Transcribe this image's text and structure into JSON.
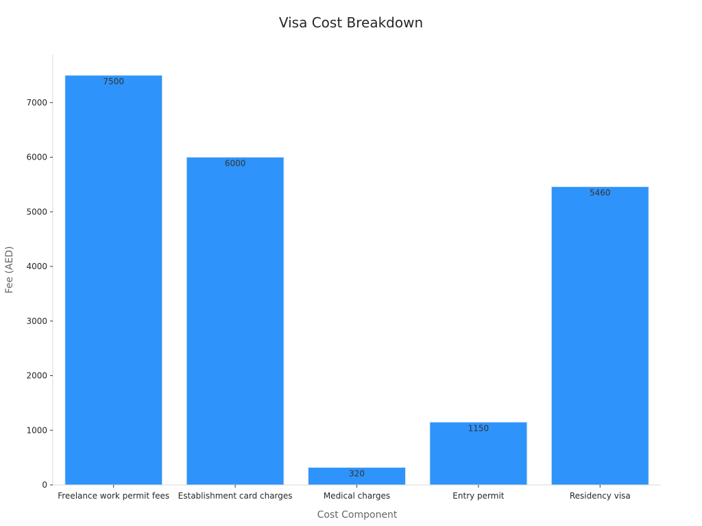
{
  "chart_data": {
    "type": "bar",
    "title": "Visa Cost Breakdown",
    "xlabel": "Cost Component",
    "ylabel": "Fee (AED)",
    "categories": [
      "Freelance work permit fees",
      "Establishment card charges",
      "Medical charges",
      "Entry permit",
      "Residency visa"
    ],
    "values": [
      7500,
      6000,
      320,
      1150,
      5460
    ],
    "data_labels": [
      "7500",
      "6000",
      "320",
      "1150",
      "5460"
    ],
    "ylim": [
      0,
      7875
    ],
    "yticks": [
      0,
      1000,
      2000,
      3000,
      4000,
      5000,
      6000,
      7000
    ],
    "ytick_labels": [
      "0",
      "1000",
      "2000",
      "3000",
      "4000",
      "5000",
      "6000",
      "7000"
    ],
    "grid": false,
    "legend": "none",
    "bar_color": "#2e93fa",
    "bar_edge_color": "#dbe9f7"
  }
}
